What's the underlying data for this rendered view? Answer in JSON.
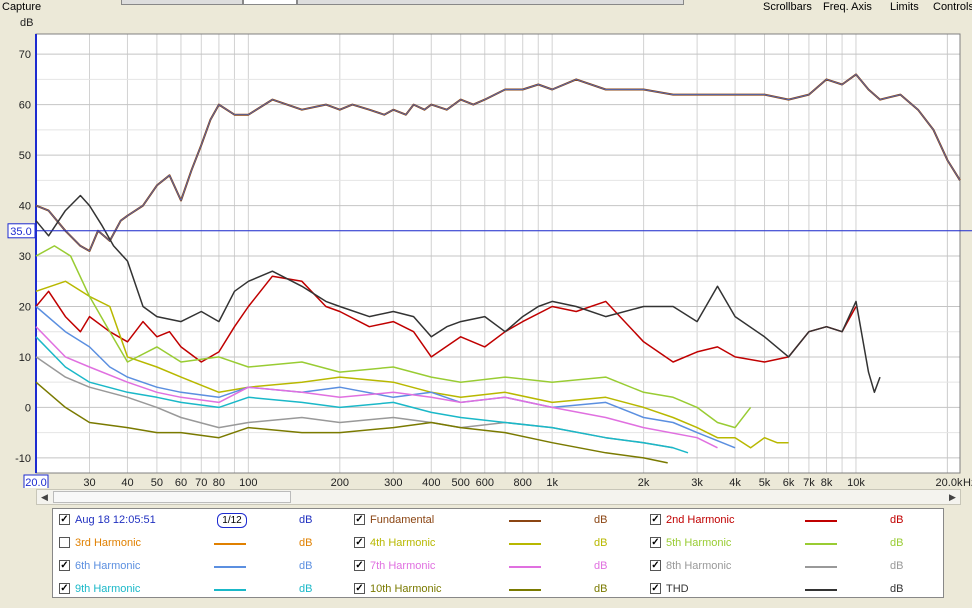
{
  "top": {
    "capture": "Capture",
    "menus": [
      "Scrollbars",
      "Freq. Axis",
      "Limits",
      "Controls"
    ]
  },
  "chart_data": {
    "type": "line",
    "ylabel": "dB",
    "xscale": "log",
    "xlim": [
      20,
      22000
    ],
    "ylim": [
      -13,
      74
    ],
    "ytick_values": [
      -10,
      0,
      10,
      20,
      30,
      40,
      50,
      60,
      70
    ],
    "yticks": [
      "-10",
      "0",
      "10",
      "20",
      "30",
      "40",
      "50",
      "60",
      "70"
    ],
    "xtick_values": [
      30,
      40,
      50,
      60,
      70,
      80,
      100,
      200,
      300,
      400,
      500,
      600,
      800,
      1000,
      2000,
      3000,
      4000,
      5000,
      6000,
      7000,
      8000,
      10000,
      20000
    ],
    "xticks": [
      "30",
      "40",
      "50",
      "60",
      "70",
      "80",
      "100",
      "200",
      "300",
      "400",
      "500",
      "600",
      "800",
      "1k",
      "2k",
      "3k",
      "4k",
      "5k",
      "6k",
      "7k",
      "8k",
      "10k",
      "20.0k"
    ],
    "x_start_label": "20.0",
    "x_end_unit": "Hz",
    "cursor_value": 35.0,
    "cursor_label": "35.0",
    "grid": true,
    "series": [
      {
        "name": "Fundamental",
        "color": "#8b4513",
        "x": [
          20,
          22,
          25,
          28,
          30,
          32,
          35,
          38,
          40,
          45,
          50,
          55,
          60,
          65,
          70,
          75,
          80,
          90,
          100,
          120,
          150,
          180,
          200,
          220,
          250,
          280,
          300,
          330,
          350,
          380,
          400,
          450,
          500,
          550,
          600,
          700,
          800,
          900,
          1000,
          1200,
          1500,
          2000,
          2500,
          3000,
          4000,
          5000,
          6000,
          7000,
          8000,
          9000,
          10000,
          11000,
          12000,
          14000,
          16000,
          18000,
          20000,
          22000
        ],
        "y": [
          40,
          39,
          35,
          32,
          31,
          35,
          33,
          37,
          38,
          40,
          44,
          46,
          41,
          47,
          52,
          57,
          60,
          58,
          58,
          61,
          59,
          60,
          59,
          60,
          59,
          58,
          59,
          58,
          60,
          59,
          60,
          59,
          61,
          60,
          61,
          63,
          63,
          64,
          63,
          65,
          63,
          63,
          62,
          62,
          62,
          62,
          61,
          62,
          65,
          64,
          66,
          63,
          61,
          62,
          59,
          55,
          49,
          45
        ]
      },
      {
        "name": "2nd Harmonic",
        "color": "#c00000",
        "x": [
          20,
          22,
          25,
          28,
          30,
          35,
          40,
          45,
          50,
          55,
          60,
          70,
          80,
          90,
          100,
          120,
          150,
          180,
          200,
          250,
          300,
          350,
          400,
          500,
          600,
          700,
          800,
          1000,
          1200,
          1500,
          2000,
          2500,
          3000,
          3500,
          4000,
          5000,
          6000,
          7000,
          8000,
          9000,
          10000
        ],
        "y": [
          20,
          23,
          18,
          15,
          18,
          15,
          13,
          17,
          14,
          15,
          12,
          9,
          11,
          16,
          20,
          26,
          25,
          20,
          19,
          16,
          17,
          15,
          10,
          14,
          12,
          15,
          17,
          20,
          19,
          21,
          13,
          9,
          11,
          12,
          10,
          9,
          10,
          15,
          16,
          15,
          20
        ]
      },
      {
        "name": "3rd Harmonic",
        "color": "#e08000",
        "hidden": true,
        "x": [],
        "y": []
      },
      {
        "name": "4th Harmonic",
        "color": "#b8b800",
        "x": [
          20,
          25,
          30,
          35,
          40,
          50,
          60,
          80,
          100,
          150,
          200,
          300,
          400,
          500,
          700,
          1000,
          1500,
          2000,
          2500,
          3000,
          3500,
          4000,
          4500,
          5000,
          5500,
          6000
        ],
        "y": [
          23,
          25,
          22,
          20,
          10,
          8,
          6,
          3,
          4,
          5,
          6,
          5,
          3,
          2,
          3,
          1,
          2,
          0,
          -2,
          -4,
          -6,
          -6,
          -8,
          -6,
          -7,
          -7
        ]
      },
      {
        "name": "5th Harmonic",
        "color": "#99cc33",
        "x": [
          20,
          23,
          26,
          30,
          35,
          40,
          50,
          60,
          80,
          100,
          150,
          200,
          300,
          400,
          500,
          700,
          1000,
          1500,
          2000,
          2500,
          3000,
          3500,
          4000,
          4500
        ],
        "y": [
          30,
          32,
          30,
          22,
          15,
          9,
          12,
          9,
          10,
          8,
          9,
          7,
          8,
          6,
          5,
          6,
          5,
          6,
          3,
          2,
          0,
          -3,
          -4,
          0
        ]
      },
      {
        "name": "6th Harmonic",
        "color": "#5b8fe0",
        "x": [
          20,
          25,
          30,
          35,
          40,
          50,
          60,
          80,
          100,
          150,
          200,
          300,
          400,
          500,
          700,
          1000,
          1500,
          2000,
          2500,
          3000,
          4000
        ],
        "y": [
          20,
          15,
          12,
          8,
          6,
          4,
          3,
          2,
          4,
          3,
          4,
          2,
          3,
          1,
          2,
          0,
          1,
          -2,
          -3,
          -5,
          -8
        ]
      },
      {
        "name": "7th Harmonic",
        "color": "#e070e0",
        "x": [
          20,
          25,
          30,
          40,
          50,
          60,
          80,
          100,
          150,
          200,
          300,
          400,
          500,
          700,
          1000,
          1500,
          2000,
          3000,
          3500
        ],
        "y": [
          16,
          10,
          8,
          5,
          3,
          2,
          1,
          4,
          3,
          2,
          3,
          2,
          1,
          2,
          0,
          -2,
          -4,
          -6,
          -8
        ]
      },
      {
        "name": "8th Harmonic",
        "color": "#999999",
        "x": [
          20,
          25,
          30,
          40,
          50,
          60,
          80,
          100,
          150,
          200,
          300,
          400,
          500,
          700,
          1000,
          1500,
          2000,
          2500
        ],
        "y": [
          10,
          6,
          4,
          2,
          0,
          -2,
          -4,
          -3,
          -2,
          -3,
          -2,
          -3,
          -4,
          -3,
          -4,
          -6,
          -7,
          -8
        ]
      },
      {
        "name": "9th Harmonic",
        "color": "#1ab8c8",
        "x": [
          20,
          25,
          30,
          40,
          50,
          60,
          80,
          100,
          150,
          200,
          300,
          400,
          500,
          700,
          1000,
          1500,
          2000,
          2500,
          2800
        ],
        "y": [
          14,
          8,
          5,
          3,
          2,
          1,
          0,
          2,
          1,
          0,
          1,
          -1,
          -2,
          -3,
          -4,
          -6,
          -7,
          -8,
          -9
        ]
      },
      {
        "name": "10th Harmonic",
        "color": "#7a7a00",
        "x": [
          20,
          25,
          30,
          40,
          50,
          60,
          80,
          100,
          150,
          200,
          300,
          400,
          500,
          700,
          1000,
          1500,
          2000,
          2400
        ],
        "y": [
          5,
          0,
          -3,
          -4,
          -5,
          -5,
          -6,
          -4,
          -5,
          -5,
          -4,
          -3,
          -4,
          -5,
          -7,
          -9,
          -10,
          -11
        ]
      },
      {
        "name": "THD",
        "color": "#333333",
        "x": [
          20,
          22,
          25,
          28,
          30,
          33,
          36,
          40,
          45,
          50,
          60,
          70,
          80,
          90,
          100,
          120,
          150,
          180,
          200,
          250,
          300,
          350,
          400,
          450,
          500,
          600,
          700,
          800,
          900,
          1000,
          1200,
          1500,
          2000,
          2500,
          3000,
          3500,
          4000,
          5000,
          6000,
          7000,
          8000,
          9000,
          10000,
          11000,
          11500,
          12000
        ],
        "y": [
          37,
          34,
          39,
          42,
          40,
          36,
          32,
          29,
          20,
          18,
          17,
          19,
          17,
          23,
          25,
          27,
          24,
          21,
          20,
          18,
          19,
          18,
          14,
          16,
          17,
          18,
          15,
          18,
          20,
          21,
          20,
          18,
          20,
          20,
          17,
          24,
          18,
          14,
          10,
          15,
          16,
          15,
          21,
          7,
          3,
          6
        ]
      }
    ]
  },
  "legend": {
    "date": "Aug 18 12:05:51",
    "smoothing": "1/12",
    "unit": "dB",
    "items": [
      {
        "name": "Fundamental",
        "checked": true,
        "color": "#8b4513"
      },
      {
        "name": "2nd Harmonic",
        "checked": true,
        "color": "#c00000"
      },
      {
        "name": "3rd Harmonic",
        "checked": false,
        "color": "#e08000"
      },
      {
        "name": "4th Harmonic",
        "checked": true,
        "color": "#b8b800"
      },
      {
        "name": "5th Harmonic",
        "checked": true,
        "color": "#99cc33"
      },
      {
        "name": "6th Harmonic",
        "checked": true,
        "color": "#5b8fe0"
      },
      {
        "name": "7th Harmonic",
        "checked": true,
        "color": "#e070e0"
      },
      {
        "name": "8th Harmonic",
        "checked": true,
        "color": "#999999"
      },
      {
        "name": "9th Harmonic",
        "checked": true,
        "color": "#1ab8c8"
      },
      {
        "name": "10th Harmonic",
        "checked": true,
        "color": "#7a7a00"
      },
      {
        "name": "THD",
        "checked": true,
        "color": "#333333"
      }
    ]
  }
}
